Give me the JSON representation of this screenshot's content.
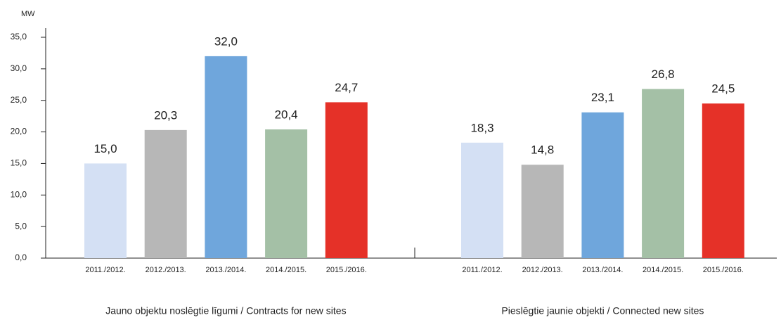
{
  "chart_data": {
    "type": "bar",
    "ylabel": "MW",
    "ylim": [
      0,
      35
    ],
    "yticks": [
      {
        "value": 0,
        "label": "0,0"
      },
      {
        "value": 5,
        "label": "5,0"
      },
      {
        "value": 10,
        "label": "10,0"
      },
      {
        "value": 15,
        "label": "15,0"
      },
      {
        "value": 20,
        "label": "20,0"
      },
      {
        "value": 25,
        "label": "25,0"
      },
      {
        "value": 30,
        "label": "30,0"
      },
      {
        "value": 35,
        "label": "35,0"
      }
    ],
    "colors": [
      "#d4e0f4",
      "#b7b7b7",
      "#6fa6dc",
      "#a4c0a6",
      "#e53128"
    ],
    "groups": [
      {
        "name": "Jauno objektu noslēgtie līgumi / Contracts for new sites",
        "categories": [
          "2011./2012.",
          "2012./2013.",
          "2013./2014.",
          "2014./2015.",
          "2015./2016."
        ],
        "values": [
          15.0,
          20.3,
          32.0,
          20.4,
          24.7
        ],
        "value_labels": [
          "15,0",
          "20,3",
          "32,0",
          "20,4",
          "24,7"
        ]
      },
      {
        "name": "Pieslēgtie jaunie objekti / Connected new sites",
        "categories": [
          "2011./2012.",
          "2012./2013.",
          "2013./2014.",
          "2014./2015.",
          "2015./2016."
        ],
        "values": [
          18.3,
          14.8,
          23.1,
          26.8,
          24.5
        ],
        "value_labels": [
          "18,3",
          "14,8",
          "23,1",
          "26,8",
          "24,5"
        ]
      }
    ]
  }
}
